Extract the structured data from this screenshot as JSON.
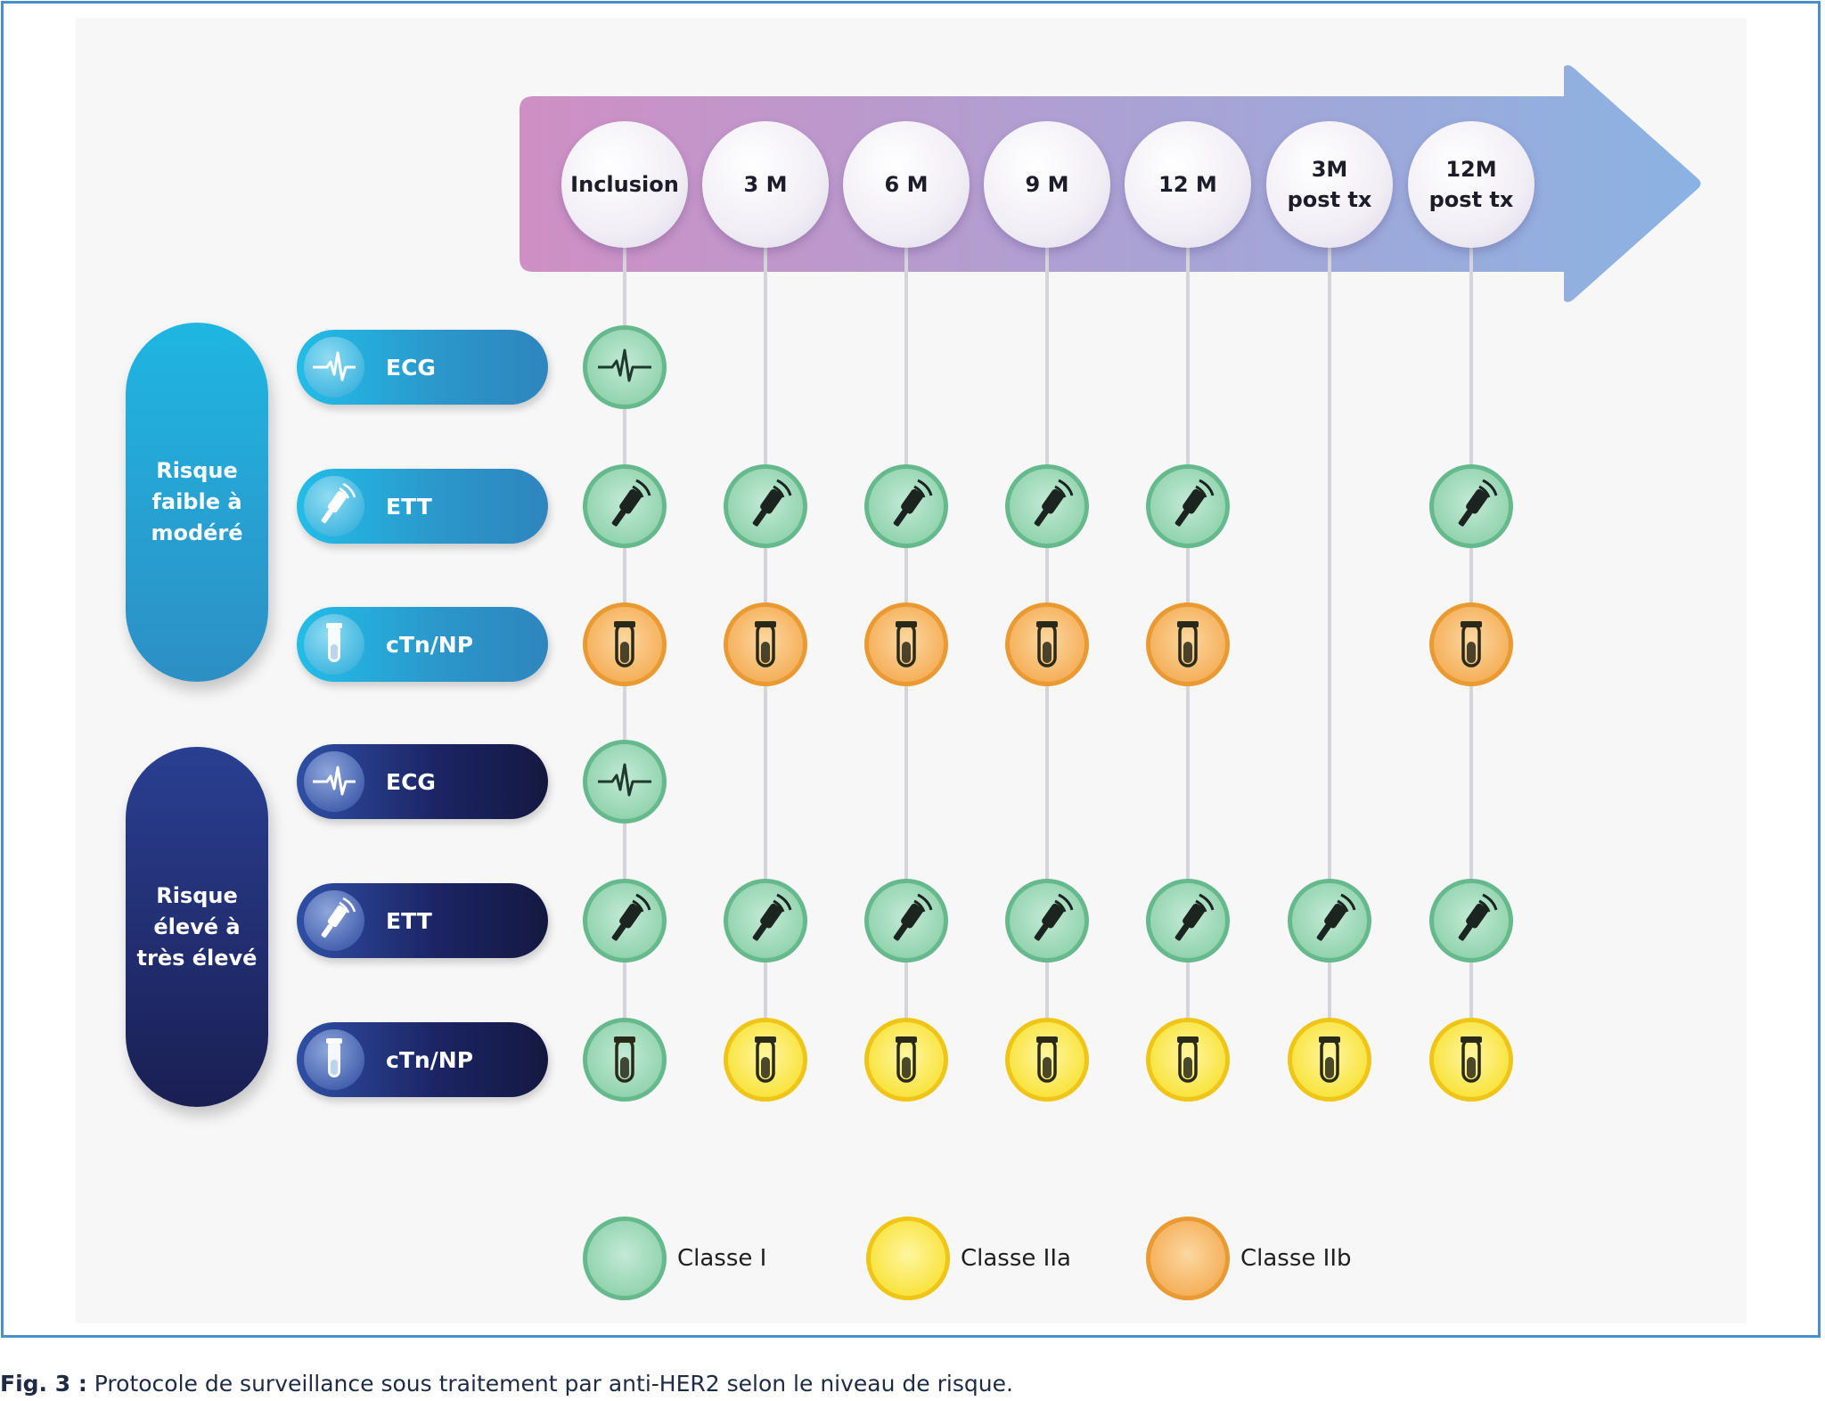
{
  "timeline": [
    "Inclusion",
    "3 M",
    "6 M",
    "9 M",
    "12 M",
    "3M\npost tx",
    "12M\npost tx"
  ],
  "groups": [
    {
      "label": "Risque\nfaible à\nmodéré",
      "theme": "low",
      "rows": [
        {
          "exam": "ECG",
          "icon": "ecg-icon",
          "cells": [
            "I",
            null,
            null,
            null,
            null,
            null,
            null
          ]
        },
        {
          "exam": "ETT",
          "icon": "ultrasound-probe-icon",
          "cells": [
            "I",
            "I",
            "I",
            "I",
            "I",
            null,
            "I"
          ]
        },
        {
          "exam": "cTn/NP",
          "icon": "test-tube-icon",
          "cells": [
            "IIb",
            "IIb",
            "IIb",
            "IIb",
            "IIb",
            null,
            "IIb"
          ]
        }
      ]
    },
    {
      "label": "Risque\nélevé à\ntrès élevé",
      "theme": "high",
      "rows": [
        {
          "exam": "ECG",
          "icon": "ecg-icon",
          "cells": [
            "I",
            null,
            null,
            null,
            null,
            null,
            null
          ]
        },
        {
          "exam": "ETT",
          "icon": "ultrasound-probe-icon",
          "cells": [
            "I",
            "I",
            "I",
            "I",
            "I",
            "I",
            "I"
          ]
        },
        {
          "exam": "cTn/NP",
          "icon": "test-tube-icon",
          "cells": [
            "I",
            "IIa",
            "IIa",
            "IIa",
            "IIa",
            "IIa",
            "IIa"
          ]
        }
      ]
    }
  ],
  "legend": [
    {
      "class": "I",
      "label": "Classe I",
      "color": "#93d4b0"
    },
    {
      "class": "IIa",
      "label": "Classe IIa",
      "color": "#f9e440"
    },
    {
      "class": "IIb",
      "label": "Classe IIb",
      "color": "#f5b15c"
    }
  ],
  "colors": {
    "arrow_start": "#cf8fc4",
    "arrow_end": "#8ab3e3",
    "low_risk": "#2b9fd4",
    "high_risk": "#1c2565",
    "frame": "#4a8fc9"
  },
  "caption": {
    "fig": "Fig. 3 :",
    "text": " Protocole de surveillance sous traitement par anti-HER2 selon le niveau de risque."
  }
}
